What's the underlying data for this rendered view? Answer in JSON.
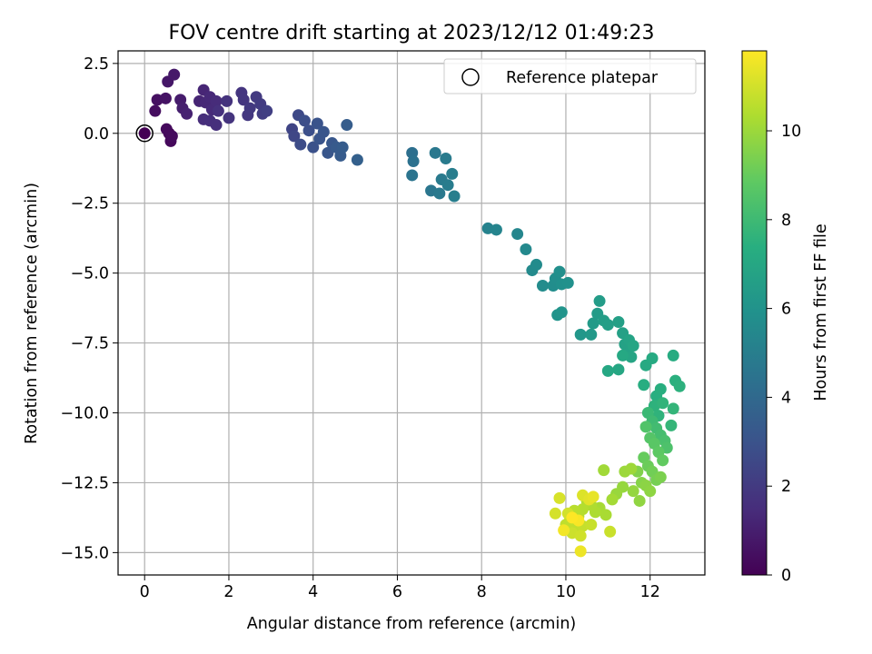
{
  "chart_data": {
    "type": "scatter",
    "title": "FOV centre drift starting at 2023/12/12 01:49:23",
    "xlabel": "Angular distance from reference (arcmin)",
    "ylabel": "Rotation from reference (arcmin)",
    "xlim": [
      -0.63,
      13.3
    ],
    "ylim": [
      -15.8,
      2.95
    ],
    "xticks": [
      "0",
      "2",
      "4",
      "6",
      "8",
      "10",
      "12"
    ],
    "yticks": [
      "2.5",
      "0.0",
      "−2.5",
      "−5.0",
      "−7.5",
      "−10.0",
      "−12.5",
      "−15.0"
    ],
    "grid": true,
    "legend": {
      "label": "Reference platepar",
      "position": "top-right"
    },
    "reference_point": {
      "x": 0.0,
      "y": 0.0
    },
    "colorbar": {
      "label": "Hours from first FF file",
      "range": [
        0,
        11.8
      ],
      "ticks": [
        "0",
        "2",
        "4",
        "6",
        "8",
        "10"
      ],
      "colormap": "viridis"
    },
    "points": [
      [
        0.0,
        0.0,
        0.0
      ],
      [
        0.58,
        0.0,
        0.2
      ],
      [
        0.62,
        -0.28,
        0.25
      ],
      [
        0.52,
        0.15,
        0.3
      ],
      [
        0.65,
        -0.1,
        0.35
      ],
      [
        0.25,
        0.8,
        0.4
      ],
      [
        0.3,
        1.2,
        0.5
      ],
      [
        0.5,
        1.25,
        0.6
      ],
      [
        0.55,
        1.85,
        0.7
      ],
      [
        0.7,
        2.1,
        0.8
      ],
      [
        0.85,
        1.2,
        0.9
      ],
      [
        0.9,
        0.9,
        1.0
      ],
      [
        1.0,
        0.7,
        1.1
      ],
      [
        1.3,
        1.15,
        1.2
      ],
      [
        1.4,
        1.55,
        1.25
      ],
      [
        1.45,
        1.1,
        1.3
      ],
      [
        1.55,
        1.3,
        1.35
      ],
      [
        1.6,
        0.85,
        1.4
      ],
      [
        1.7,
        1.15,
        1.45
      ],
      [
        1.4,
        0.5,
        1.5
      ],
      [
        1.55,
        0.45,
        1.55
      ],
      [
        1.7,
        0.3,
        1.6
      ],
      [
        1.75,
        0.8,
        1.65
      ],
      [
        1.95,
        1.15,
        1.7
      ],
      [
        2.0,
        0.55,
        1.75
      ],
      [
        2.3,
        1.45,
        1.8
      ],
      [
        2.35,
        1.2,
        1.85
      ],
      [
        2.45,
        0.65,
        1.9
      ],
      [
        2.5,
        0.9,
        1.95
      ],
      [
        2.65,
        1.3,
        2.0
      ],
      [
        2.75,
        1.05,
        2.05
      ],
      [
        2.8,
        0.7,
        2.1
      ],
      [
        2.9,
        0.8,
        2.2
      ],
      [
        3.5,
        0.15,
        2.4
      ],
      [
        3.55,
        -0.1,
        2.5
      ],
      [
        3.65,
        0.65,
        2.6
      ],
      [
        3.7,
        -0.4,
        2.7
      ],
      [
        3.8,
        0.45,
        2.8
      ],
      [
        3.9,
        0.1,
        2.85
      ],
      [
        4.0,
        -0.5,
        2.9
      ],
      [
        4.1,
        0.35,
        3.0
      ],
      [
        4.15,
        -0.2,
        3.05
      ],
      [
        4.25,
        0.05,
        3.1
      ],
      [
        4.35,
        -0.7,
        3.15
      ],
      [
        4.45,
        -0.35,
        3.2
      ],
      [
        4.55,
        -0.5,
        3.3
      ],
      [
        4.65,
        -0.8,
        3.35
      ],
      [
        4.7,
        -0.5,
        3.4
      ],
      [
        4.8,
        0.3,
        3.45
      ],
      [
        5.05,
        -0.95,
        3.6
      ],
      [
        6.35,
        -0.7,
        4.3
      ],
      [
        6.38,
        -1.0,
        4.4
      ],
      [
        6.35,
        -1.5,
        4.5
      ],
      [
        6.8,
        -2.05,
        4.6
      ],
      [
        6.9,
        -0.7,
        4.7
      ],
      [
        7.0,
        -2.15,
        4.75
      ],
      [
        7.05,
        -1.65,
        4.8
      ],
      [
        7.15,
        -0.9,
        4.85
      ],
      [
        7.2,
        -1.85,
        4.9
      ],
      [
        7.3,
        -1.45,
        4.95
      ],
      [
        7.35,
        -2.25,
        5.0
      ],
      [
        8.15,
        -3.4,
        5.2
      ],
      [
        8.35,
        -3.45,
        5.3
      ],
      [
        8.85,
        -3.6,
        5.4
      ],
      [
        9.05,
        -4.15,
        5.5
      ],
      [
        9.2,
        -4.9,
        5.55
      ],
      [
        9.3,
        -4.7,
        5.6
      ],
      [
        9.45,
        -5.45,
        5.65
      ],
      [
        9.7,
        -5.45,
        5.7
      ],
      [
        9.75,
        -5.2,
        5.75
      ],
      [
        9.85,
        -4.95,
        5.8
      ],
      [
        9.9,
        -5.4,
        5.85
      ],
      [
        10.05,
        -5.35,
        5.9
      ],
      [
        9.8,
        -6.5,
        6.0
      ],
      [
        9.9,
        -6.4,
        6.05
      ],
      [
        10.35,
        -7.2,
        6.2
      ],
      [
        10.6,
        -7.2,
        6.3
      ],
      [
        10.65,
        -6.8,
        6.35
      ],
      [
        10.75,
        -6.45,
        6.4
      ],
      [
        10.8,
        -6.0,
        6.45
      ],
      [
        10.9,
        -6.7,
        6.5
      ],
      [
        11.0,
        -6.85,
        6.55
      ],
      [
        11.25,
        -6.75,
        6.6
      ],
      [
        11.35,
        -7.15,
        6.65
      ],
      [
        11.4,
        -7.55,
        6.7
      ],
      [
        11.45,
        -7.9,
        6.75
      ],
      [
        11.5,
        -7.4,
        6.8
      ],
      [
        11.55,
        -8.0,
        6.85
      ],
      [
        11.6,
        -7.6,
        6.9
      ],
      [
        11.25,
        -8.45,
        6.95
      ],
      [
        11.0,
        -8.5,
        7.0
      ],
      [
        11.35,
        -7.95,
        7.05
      ],
      [
        11.9,
        -8.3,
        7.1
      ],
      [
        12.05,
        -8.05,
        7.15
      ],
      [
        12.55,
        -7.95,
        7.2
      ],
      [
        11.85,
        -9.0,
        7.3
      ],
      [
        12.15,
        -9.4,
        7.35
      ],
      [
        12.25,
        -9.15,
        7.4
      ],
      [
        12.6,
        -8.85,
        7.45
      ],
      [
        12.7,
        -9.05,
        7.5
      ],
      [
        12.1,
        -9.75,
        7.55
      ],
      [
        12.2,
        -10.1,
        7.6
      ],
      [
        12.3,
        -9.65,
        7.65
      ],
      [
        12.55,
        -9.85,
        7.7
      ],
      [
        12.5,
        -10.45,
        7.75
      ],
      [
        11.95,
        -10.0,
        7.9
      ],
      [
        12.05,
        -10.3,
        8.0
      ],
      [
        12.15,
        -10.55,
        8.1
      ],
      [
        12.25,
        -10.8,
        8.2
      ],
      [
        12.35,
        -11.0,
        8.3
      ],
      [
        12.4,
        -11.25,
        8.4
      ],
      [
        11.9,
        -10.5,
        8.5
      ],
      [
        12.0,
        -10.9,
        8.6
      ],
      [
        12.1,
        -11.1,
        8.7
      ],
      [
        12.2,
        -11.4,
        8.8
      ],
      [
        12.3,
        -11.7,
        8.9
      ],
      [
        11.85,
        -11.6,
        9.0
      ],
      [
        11.95,
        -11.9,
        9.1
      ],
      [
        12.05,
        -12.1,
        9.2
      ],
      [
        12.15,
        -12.4,
        9.3
      ],
      [
        12.25,
        -12.3,
        9.4
      ],
      [
        11.7,
        -12.1,
        9.5
      ],
      [
        11.8,
        -12.5,
        9.6
      ],
      [
        11.9,
        -12.6,
        9.7
      ],
      [
        12.0,
        -12.8,
        9.75
      ],
      [
        11.75,
        -13.15,
        9.8
      ],
      [
        11.6,
        -12.8,
        9.85
      ],
      [
        11.35,
        -12.65,
        9.9
      ],
      [
        11.2,
        -12.9,
        9.95
      ],
      [
        11.4,
        -12.1,
        10.0
      ],
      [
        11.55,
        -12.0,
        10.05
      ],
      [
        10.9,
        -12.05,
        10.1
      ],
      [
        11.1,
        -13.1,
        10.15
      ],
      [
        10.8,
        -13.4,
        10.2
      ],
      [
        10.95,
        -13.65,
        10.25
      ],
      [
        10.7,
        -13.55,
        10.3
      ],
      [
        10.6,
        -13.3,
        10.35
      ],
      [
        10.5,
        -13.15,
        10.4
      ],
      [
        10.4,
        -13.45,
        10.45
      ],
      [
        10.3,
        -13.7,
        10.5
      ],
      [
        10.2,
        -13.5,
        10.55
      ],
      [
        10.1,
        -13.8,
        10.6
      ],
      [
        10.0,
        -14.0,
        10.65
      ],
      [
        10.2,
        -14.1,
        10.7
      ],
      [
        10.4,
        -14.05,
        10.75
      ],
      [
        10.6,
        -14.0,
        10.8
      ],
      [
        11.05,
        -14.25,
        10.85
      ],
      [
        10.15,
        -14.3,
        10.9
      ],
      [
        10.35,
        -14.4,
        10.95
      ],
      [
        10.05,
        -13.6,
        11.0
      ],
      [
        9.75,
        -13.6,
        11.05
      ],
      [
        9.85,
        -13.05,
        11.1
      ],
      [
        10.4,
        -12.95,
        11.2
      ],
      [
        10.55,
        -13.1,
        11.3
      ],
      [
        10.65,
        -13.0,
        11.4
      ],
      [
        10.35,
        -14.95,
        11.5
      ],
      [
        9.95,
        -14.2,
        11.6
      ],
      [
        10.3,
        -13.85,
        11.7
      ],
      [
        10.15,
        -13.75,
        11.8
      ]
    ]
  }
}
